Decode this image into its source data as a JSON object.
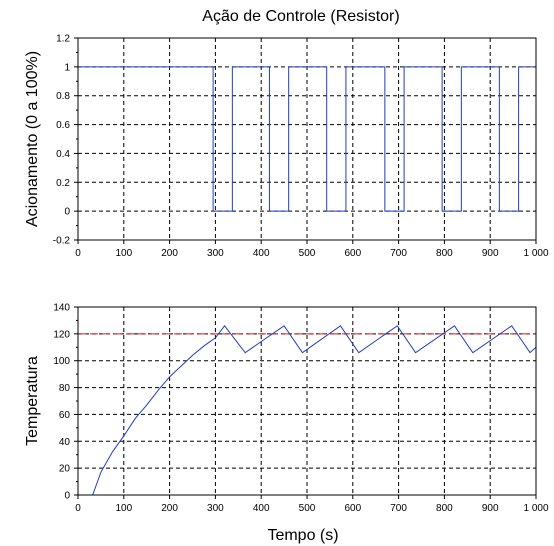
{
  "chart_data": [
    {
      "type": "line",
      "title": "Ação de Controle (Resistor)",
      "xlabel": "",
      "ylabel": "Acionamento (0 a 100%)",
      "xlim": [
        0,
        1000
      ],
      "ylim": [
        -0.2,
        1.2
      ],
      "xticks": [
        "0",
        "100",
        "200",
        "300",
        "400",
        "500",
        "600",
        "700",
        "800",
        "900",
        "1 000"
      ],
      "yticks": [
        "-0.2",
        "0",
        "0.2",
        "0.4",
        "0.6",
        "0.8",
        "1",
        "1.2"
      ],
      "grid": true,
      "line_color": "#1f3fbf",
      "series": [
        {
          "x": [
            0,
            295,
            295,
            337,
            337,
            418,
            418,
            460,
            460,
            543,
            543,
            585,
            585,
            670,
            670,
            712,
            712,
            795,
            795,
            837,
            837,
            920,
            920,
            962,
            962,
            1000
          ],
          "y": [
            1,
            1,
            0,
            0,
            1,
            1,
            0,
            0,
            1,
            1,
            0,
            0,
            1,
            1,
            0,
            0,
            1,
            1,
            0,
            0,
            1,
            1,
            0,
            0,
            1,
            1
          ]
        }
      ]
    },
    {
      "type": "line",
      "title": "",
      "xlabel": "Tempo (s)",
      "ylabel": "Temperatura",
      "xlim": [
        0,
        1000
      ],
      "ylim": [
        0,
        140
      ],
      "xticks": [
        "0",
        "100",
        "200",
        "300",
        "400",
        "500",
        "600",
        "700",
        "800",
        "900",
        "1 000"
      ],
      "yticks": [
        "0",
        "20",
        "40",
        "60",
        "80",
        "100",
        "120",
        "140"
      ],
      "grid": true,
      "line_color": "#1f3fbf",
      "setpoint_color": "#d62020",
      "series": [
        {
          "x": [
            32,
            50,
            75,
            100,
            125,
            150,
            175,
            200,
            225,
            250,
            275,
            300,
            320,
            365,
            450,
            490,
            573,
            613,
            697,
            737,
            822,
            862,
            947,
            987,
            1000
          ],
          "y": [
            0,
            17,
            32,
            44,
            57,
            67,
            78,
            88,
            96,
            104,
            111,
            117,
            126,
            106,
            126,
            106,
            126,
            106,
            126,
            106,
            126,
            106,
            126,
            106,
            110
          ]
        },
        {
          "x": [
            0,
            1000
          ],
          "y": [
            120,
            120
          ]
        }
      ]
    }
  ]
}
